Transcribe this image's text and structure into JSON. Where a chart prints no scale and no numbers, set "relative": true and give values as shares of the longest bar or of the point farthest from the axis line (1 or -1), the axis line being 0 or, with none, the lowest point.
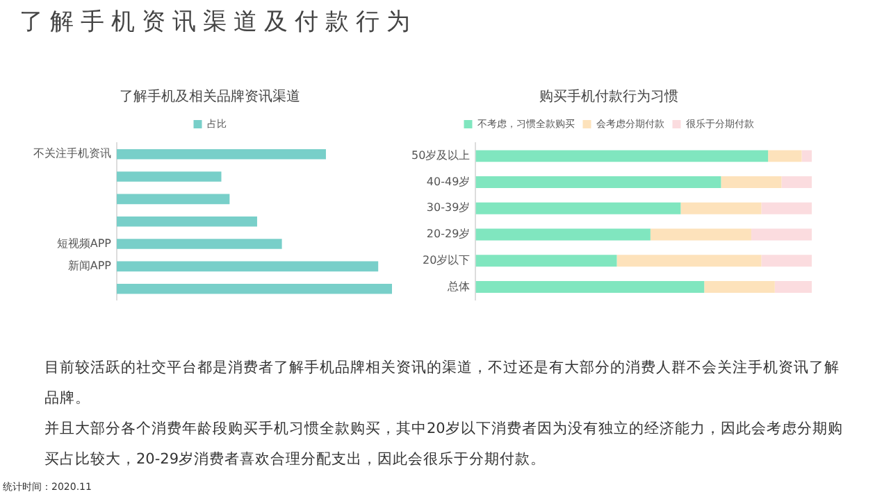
{
  "chart_data": [
    {
      "type": "bar",
      "title": "了解手机及相关品牌资讯渠道",
      "orientation": "horizontal",
      "relative": true,
      "legend": "top",
      "grid": false,
      "categories": [
        "不关注手机资讯",
        null,
        null,
        null,
        "短视频APP",
        "新闻APP",
        null
      ],
      "series": [
        {
          "name": "占比",
          "color": "#78cfc9",
          "values": [
            0.76,
            0.38,
            0.41,
            0.51,
            0.6,
            0.95,
            1
          ]
        }
      ],
      "annotations": [
        "了解手机资讯渠道及付款行为"
      ]
    },
    {
      "type": "bar",
      "title": "购买手机付款行为习惯",
      "orientation": "horizontal",
      "relative": true,
      "stacked": true,
      "legend": "top",
      "grid": false,
      "categories": [
        "50岁及以上",
        "40-49岁",
        "30-39岁",
        "20-29岁",
        "20岁以下",
        "总体"
      ],
      "series": [
        {
          "name": "不考虑，习惯全款购买",
          "color": "#80e6bf",
          "values": [
            0.87,
            0.73,
            0.61,
            0.52,
            0.42,
            0.68
          ]
        },
        {
          "name": "会考虑分期付款",
          "color": "#fde2bb",
          "values": [
            0.1,
            0.18,
            0.24,
            0.3,
            0.43,
            0.21
          ]
        },
        {
          "name": "很乐于分期付款",
          "color": "#fbdcdf",
          "values": [
            0.03,
            0.09,
            0.15,
            0.18,
            0.15,
            0.11
          ]
        }
      ],
      "annotations": [
        "目前较活跃的社交平台都是消费者了解手机品牌相关资讯的渠道，不过还是有大部分的消费人群不会关注手机资讯了解品牌。",
        "并且大部分各个消费年龄段购买手机习惯全款购买，其中20岁以下消费者因为没有独立的经济能力，因此会考虑分期购买占比较大，20-29岁消费者喜欢合理分配支出，因此会很乐于分期付款。",
        "统计时间：2020.11"
      ]
    }
  ]
}
